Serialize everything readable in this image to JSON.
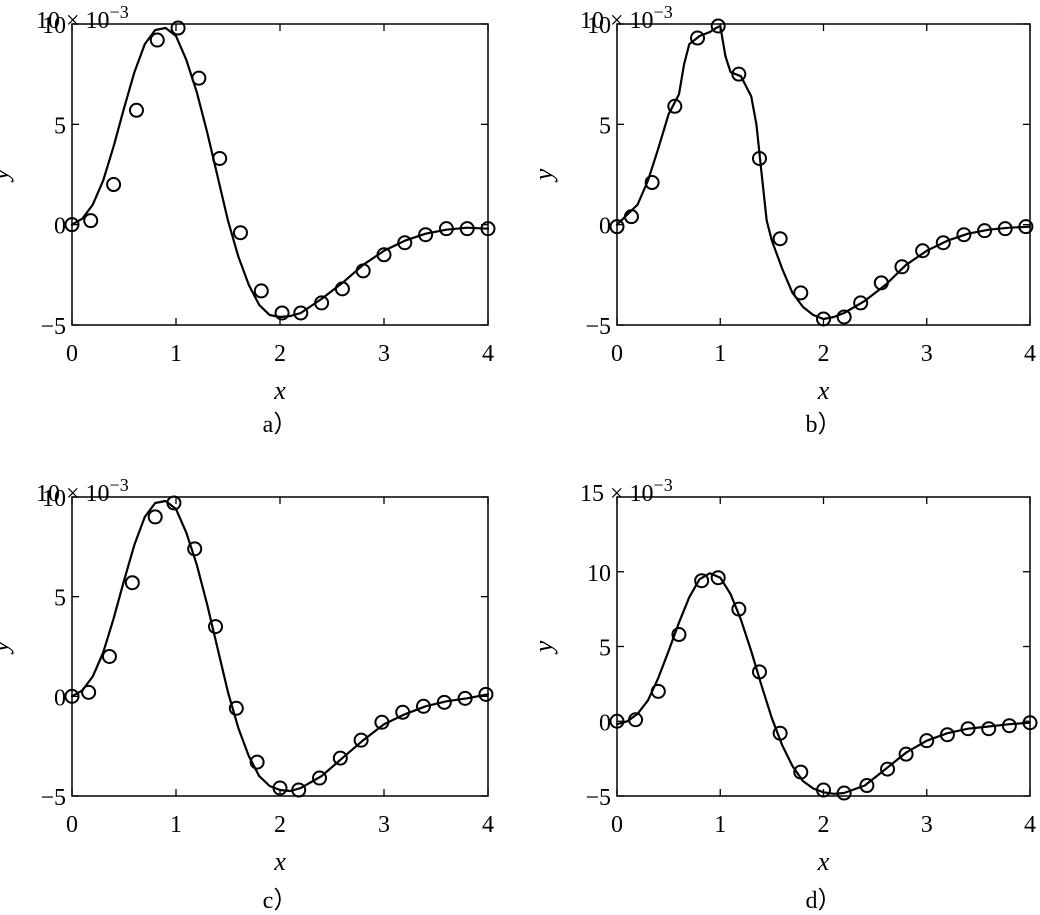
{
  "chart_data": [
    {
      "type": "line",
      "caption": "a）",
      "xlabel": "x",
      "ylabel": "y",
      "multiplier": "10",
      "multiplier_exp": "−3",
      "xlim": [
        0,
        4
      ],
      "ylim": [
        -5,
        10
      ],
      "xticks": [
        "0",
        "1",
        "2",
        "3",
        "4"
      ],
      "yticks": [
        "−5",
        "0",
        "5",
        "10"
      ],
      "ytick_values": [
        -5,
        0,
        5,
        10
      ],
      "series": [
        {
          "style": "solid",
          "x": [
            0,
            0.1,
            0.2,
            0.3,
            0.4,
            0.5,
            0.6,
            0.7,
            0.8,
            0.9,
            1.0,
            1.1,
            1.2,
            1.3,
            1.4,
            1.5,
            1.6,
            1.7,
            1.8,
            1.9,
            2.0,
            2.1,
            2.2,
            2.4,
            2.6,
            2.8,
            3.0,
            3.2,
            3.4,
            3.6,
            3.8,
            4.0
          ],
          "y": [
            0,
            0.3,
            1.0,
            2.2,
            3.9,
            5.8,
            7.6,
            9.0,
            9.7,
            9.8,
            9.4,
            8.2,
            6.6,
            4.6,
            2.4,
            0.2,
            -1.6,
            -3.0,
            -4.0,
            -4.5,
            -4.6,
            -4.55,
            -4.4,
            -3.7,
            -2.9,
            -2.0,
            -1.3,
            -0.8,
            -0.45,
            -0.25,
            -0.15,
            -0.2
          ]
        },
        {
          "style": "circle",
          "x": [
            0.0,
            0.18,
            0.4,
            0.62,
            0.82,
            1.02,
            1.22,
            1.42,
            1.62,
            1.82,
            2.02,
            2.2,
            2.4,
            2.6,
            2.8,
            3.0,
            3.2,
            3.4,
            3.6,
            3.8,
            4.0
          ],
          "y": [
            0.0,
            0.2,
            2.0,
            5.7,
            9.2,
            9.8,
            7.3,
            3.3,
            -0.4,
            -3.3,
            -4.4,
            -4.4,
            -3.9,
            -3.2,
            -2.3,
            -1.5,
            -0.9,
            -0.5,
            -0.2,
            -0.2,
            -0.2
          ]
        }
      ]
    },
    {
      "type": "line",
      "caption": "b）",
      "xlabel": "x",
      "ylabel": "y",
      "multiplier": "10",
      "multiplier_exp": "−3",
      "xlim": [
        0,
        4
      ],
      "ylim": [
        -5,
        10
      ],
      "xticks": [
        "0",
        "1",
        "2",
        "3",
        "4"
      ],
      "yticks": [
        "−5",
        "0",
        "5",
        "10"
      ],
      "ytick_values": [
        -5,
        0,
        5,
        10
      ],
      "series": [
        {
          "style": "solid",
          "x": [
            0,
            0.1,
            0.2,
            0.3,
            0.4,
            0.5,
            0.6,
            0.65,
            0.7,
            0.8,
            0.9,
            0.96,
            1.0,
            1.05,
            1.1,
            1.2,
            1.3,
            1.35,
            1.4,
            1.45,
            1.5,
            1.6,
            1.7,
            1.8,
            1.9,
            2.0,
            2.1,
            2.2,
            2.4,
            2.6,
            2.8,
            3.0,
            3.2,
            3.4,
            3.6,
            3.8,
            4.0
          ],
          "y": [
            0,
            0.5,
            1.0,
            2.2,
            3.8,
            5.5,
            6.5,
            8.0,
            9.0,
            9.4,
            9.6,
            9.8,
            9.9,
            8.4,
            7.6,
            7.4,
            6.4,
            5.0,
            2.6,
            0.2,
            -0.8,
            -2.2,
            -3.4,
            -4.1,
            -4.5,
            -4.7,
            -4.6,
            -4.4,
            -3.8,
            -3.0,
            -2.0,
            -1.3,
            -0.8,
            -0.45,
            -0.25,
            -0.15,
            -0.1
          ]
        },
        {
          "style": "circle",
          "x": [
            0.0,
            0.14,
            0.34,
            0.56,
            0.78,
            0.98,
            1.18,
            1.38,
            1.58,
            1.78,
            2.0,
            2.2,
            2.36,
            2.56,
            2.76,
            2.96,
            3.16,
            3.36,
            3.56,
            3.76,
            3.96
          ],
          "y": [
            -0.1,
            0.4,
            2.1,
            5.9,
            9.3,
            9.9,
            7.5,
            3.3,
            -0.7,
            -3.4,
            -4.7,
            -4.6,
            -3.9,
            -2.9,
            -2.1,
            -1.3,
            -0.9,
            -0.5,
            -0.3,
            -0.2,
            -0.1
          ]
        }
      ]
    },
    {
      "type": "line",
      "caption": "c）",
      "xlabel": "x",
      "ylabel": "y",
      "multiplier": "10",
      "multiplier_exp": "−3",
      "xlim": [
        0,
        4
      ],
      "ylim": [
        -5,
        10
      ],
      "xticks": [
        "0",
        "1",
        "2",
        "3",
        "4"
      ],
      "yticks": [
        "−5",
        "0",
        "5",
        "10"
      ],
      "ytick_values": [
        -5,
        0,
        5,
        10
      ],
      "series": [
        {
          "style": "solid",
          "x": [
            0,
            0.1,
            0.2,
            0.3,
            0.4,
            0.5,
            0.6,
            0.7,
            0.8,
            0.9,
            1.0,
            1.1,
            1.2,
            1.3,
            1.4,
            1.5,
            1.6,
            1.7,
            1.8,
            1.9,
            2.0,
            2.1,
            2.2,
            2.4,
            2.6,
            2.8,
            3.0,
            3.2,
            3.4,
            3.6,
            3.8,
            4.0
          ],
          "y": [
            0,
            0.3,
            1.0,
            2.2,
            3.9,
            5.8,
            7.6,
            9.0,
            9.7,
            9.8,
            9.4,
            8.2,
            6.6,
            4.6,
            2.4,
            0.2,
            -1.6,
            -3.0,
            -4.0,
            -4.5,
            -4.7,
            -4.75,
            -4.6,
            -4.0,
            -3.1,
            -2.2,
            -1.4,
            -0.9,
            -0.5,
            -0.25,
            -0.1,
            0.1
          ]
        },
        {
          "style": "circle",
          "x": [
            0.0,
            0.16,
            0.36,
            0.58,
            0.8,
            0.98,
            1.18,
            1.38,
            1.58,
            1.78,
            2.0,
            2.18,
            2.38,
            2.58,
            2.78,
            2.98,
            3.18,
            3.38,
            3.58,
            3.78,
            3.98
          ],
          "y": [
            0.0,
            0.2,
            2.0,
            5.7,
            9.0,
            9.7,
            7.4,
            3.5,
            -0.6,
            -3.3,
            -4.6,
            -4.7,
            -4.1,
            -3.1,
            -2.2,
            -1.3,
            -0.8,
            -0.5,
            -0.3,
            -0.1,
            0.1
          ]
        }
      ]
    },
    {
      "type": "line",
      "caption": "d）",
      "xlabel": "x",
      "ylabel": "y",
      "multiplier": "15",
      "multiplier_exp": "−3",
      "xlim": [
        0,
        4
      ],
      "ylim": [
        -5,
        15
      ],
      "xticks": [
        "0",
        "1",
        "2",
        "3",
        "4"
      ],
      "yticks": [
        "−5",
        "0",
        "5",
        "10"
      ],
      "ytick_values": [
        -5,
        0,
        5,
        10
      ],
      "series": [
        {
          "style": "solid",
          "x": [
            0,
            0.1,
            0.2,
            0.3,
            0.4,
            0.5,
            0.6,
            0.7,
            0.8,
            0.9,
            1.0,
            1.1,
            1.2,
            1.3,
            1.4,
            1.5,
            1.6,
            1.7,
            1.8,
            1.9,
            2.0,
            2.1,
            2.2,
            2.4,
            2.6,
            2.8,
            3.0,
            3.2,
            3.4,
            3.6,
            3.8,
            4.0
          ],
          "y": [
            -0.2,
            0.0,
            0.5,
            1.4,
            2.9,
            4.7,
            6.6,
            8.3,
            9.5,
            9.9,
            9.6,
            8.5,
            6.8,
            4.7,
            2.4,
            0.2,
            -1.6,
            -3.0,
            -4.0,
            -4.5,
            -4.75,
            -4.85,
            -4.8,
            -4.3,
            -3.2,
            -2.1,
            -1.3,
            -0.8,
            -0.5,
            -0.35,
            -0.2,
            -0.1
          ]
        },
        {
          "style": "circle",
          "x": [
            0.0,
            0.18,
            0.4,
            0.6,
            0.82,
            0.98,
            1.18,
            1.38,
            1.58,
            1.78,
            2.0,
            2.2,
            2.42,
            2.62,
            2.8,
            3.0,
            3.2,
            3.4,
            3.6,
            3.8,
            4.0
          ],
          "y": [
            0.0,
            0.1,
            2.0,
            5.8,
            9.4,
            9.6,
            7.5,
            3.3,
            -0.8,
            -3.4,
            -4.6,
            -4.8,
            -4.3,
            -3.2,
            -2.2,
            -1.3,
            -0.9,
            -0.5,
            -0.5,
            -0.3,
            -0.1
          ]
        }
      ]
    }
  ]
}
